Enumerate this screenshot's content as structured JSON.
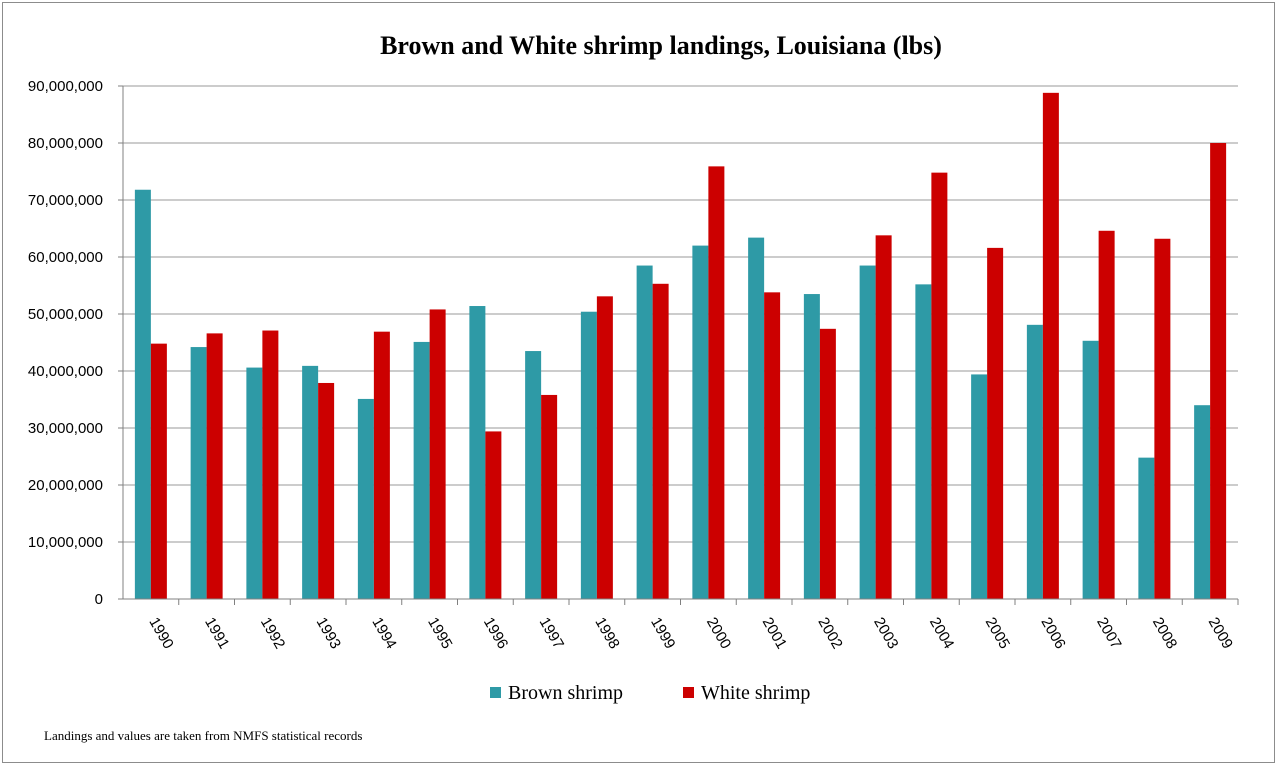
{
  "chart_data": {
    "type": "bar",
    "title": "Brown and White shrimp landings, Louisiana (lbs)",
    "xlabel": "",
    "ylabel": "",
    "ylim": [
      0,
      90000000
    ],
    "yticks": [
      "0",
      "10,000,000",
      "20,000,000",
      "30,000,000",
      "40,000,000",
      "50,000,000",
      "60,000,000",
      "70,000,000",
      "80,000,000",
      "90,000,000"
    ],
    "categories": [
      "1990",
      "1991",
      "1992",
      "1993",
      "1994",
      "1995",
      "1996",
      "1997",
      "1998",
      "1999",
      "2000",
      "2001",
      "2002",
      "2003",
      "2004",
      "2005",
      "2006",
      "2007",
      "2008",
      "2009"
    ],
    "series": [
      {
        "name": "Brown shrimp",
        "color": "#2E9AA6",
        "values": [
          71800000,
          44200000,
          40600000,
          40900000,
          35100000,
          45100000,
          51400000,
          43500000,
          50400000,
          58500000,
          62000000,
          63400000,
          53500000,
          58500000,
          55200000,
          39400000,
          48100000,
          45300000,
          24800000,
          34000000
        ]
      },
      {
        "name": "White shrimp",
        "color": "#CC0000",
        "values": [
          44800000,
          46600000,
          47100000,
          37900000,
          46900000,
          50800000,
          29400000,
          35800000,
          53100000,
          55300000,
          75900000,
          53800000,
          47400000,
          63800000,
          74800000,
          61600000,
          88800000,
          64600000,
          63200000,
          80000000
        ]
      }
    ],
    "grid": true,
    "legend": "bottom"
  },
  "note": "Landings and values are taken from NMFS statistical records"
}
